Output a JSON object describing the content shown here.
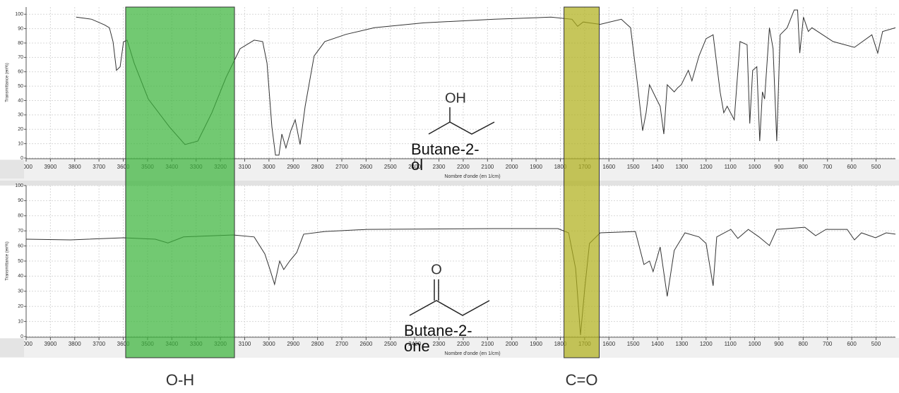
{
  "chart_data": [
    {
      "type": "line",
      "color": "#333333",
      "ylabel": "Transmittance (en%)",
      "xlabel": "Nombre d'onde (en 1/cm)",
      "xlim": [
        4000,
        420
      ],
      "ylim": [
        0,
        105
      ],
      "xticks": [
        4000,
        3900,
        3800,
        3700,
        3600,
        3500,
        3400,
        3300,
        3200,
        3100,
        3000,
        2900,
        2800,
        2700,
        2600,
        2500,
        2400,
        2300,
        2200,
        2100,
        2000,
        1900,
        1800,
        1700,
        1600,
        1500,
        1400,
        1300,
        1200,
        1100,
        1000,
        900,
        800,
        700,
        600,
        500
      ],
      "yticks": [
        0,
        10,
        20,
        30,
        40,
        50,
        60,
        70,
        80,
        90,
        100
      ],
      "grid": true,
      "annotations": [
        "OH",
        "Butane-2-ol"
      ],
      "x": [
        3794,
        3730,
        3677,
        3657,
        3642,
        3628,
        3613,
        3599,
        3584,
        3555,
        3497,
        3410,
        3346,
        3293,
        3235,
        3177,
        3119,
        3061,
        3026,
        3008,
        2988,
        2973,
        2959,
        2947,
        2930,
        2910,
        2892,
        2872,
        2851,
        2814,
        2770,
        2683,
        2566,
        2363,
        2072,
        1839,
        1752,
        1729,
        1706,
        1636,
        1549,
        1511,
        1482,
        1461,
        1447,
        1433,
        1404,
        1389,
        1374,
        1360,
        1331,
        1316,
        1302,
        1273,
        1258,
        1229,
        1200,
        1171,
        1142,
        1127,
        1113,
        1084,
        1060,
        1031,
        1020,
        1008,
        991,
        979,
        968,
        959,
        939,
        924,
        909,
        895,
        866,
        837,
        823,
        814,
        799,
        779,
        764,
        677,
        589,
        517,
        493,
        473,
        420
      ],
      "values": [
        98,
        96.5,
        92.6,
        90.6,
        80.8,
        61,
        63.5,
        80.8,
        82,
        66,
        41,
        21.7,
        9.4,
        11.8,
        31.5,
        56,
        76,
        82,
        81,
        66,
        21.7,
        2,
        2,
        16.7,
        7,
        19,
        26.6,
        9.4,
        36,
        71,
        81,
        86,
        90.6,
        94,
        96.5,
        98,
        96.5,
        91.6,
        94.6,
        93,
        96.5,
        90.6,
        51,
        19,
        31.5,
        51,
        41,
        36,
        16.7,
        51,
        46,
        49,
        51,
        61,
        53.7,
        71,
        83,
        85.7,
        46,
        31.5,
        36,
        26.6,
        81,
        78.8,
        24,
        61,
        63.5,
        11.8,
        46,
        41,
        90.6,
        76,
        11.8,
        85.7,
        90.6,
        103,
        103,
        73,
        98,
        88,
        90.6,
        81,
        77,
        85.7,
        73,
        88,
        90.6
      ]
    },
    {
      "type": "line",
      "color": "#333333",
      "ylabel": "Transmittance (en%)",
      "xlabel": "Nombre d'onde (en 1/cm)",
      "xlim": [
        4000,
        420
      ],
      "ylim": [
        0,
        100
      ],
      "xticks": [
        4000,
        3900,
        3800,
        3700,
        3600,
        3500,
        3400,
        3300,
        3200,
        3100,
        3000,
        2900,
        2800,
        2700,
        2600,
        2500,
        2400,
        2300,
        2200,
        2100,
        2000,
        1900,
        1800,
        1700,
        1600,
        1500,
        1400,
        1300,
        1200,
        1100,
        1000,
        900,
        800,
        700,
        600,
        500
      ],
      "yticks": [
        0,
        10,
        20,
        30,
        40,
        50,
        60,
        70,
        80,
        90,
        100
      ],
      "grid": true,
      "annotations": [
        "O",
        "Butane-2-one"
      ],
      "x": [
        4000,
        3817,
        3599,
        3468,
        3416,
        3352,
        3148,
        3061,
        3017,
        2997,
        2977,
        2956,
        2939,
        2915,
        2886,
        2857,
        2770,
        2595,
        2072,
        1810,
        1766,
        1737,
        1717,
        1700,
        1680,
        1636,
        1491,
        1456,
        1433,
        1418,
        1389,
        1360,
        1331,
        1287,
        1229,
        1200,
        1171,
        1156,
        1098,
        1069,
        1026,
        982,
        939,
        909,
        793,
        749,
        706,
        619,
        589,
        560,
        502,
        458,
        420
      ],
      "values": [
        64.5,
        64,
        65.4,
        64.5,
        62,
        66,
        67.3,
        66,
        54.7,
        45,
        34.6,
        50,
        44.4,
        50,
        55.6,
        67.8,
        69.6,
        71,
        71.5,
        71.5,
        68.7,
        45,
        1,
        31.3,
        61.7,
        68.7,
        69.6,
        47.7,
        50,
        43,
        59.3,
        26.6,
        57,
        68.7,
        66,
        61.7,
        33.6,
        66,
        71,
        65,
        71,
        66,
        60.3,
        71,
        72.4,
        66.8,
        71,
        71,
        64,
        68.7,
        65.4,
        68.7,
        67.8
      ]
    }
  ],
  "bands": [
    {
      "label": "O-H",
      "from": 3590,
      "to": 3142,
      "color": "#3cb43c"
    },
    {
      "label": "C=O",
      "from": 1785,
      "to": 1640,
      "color": "#b0b01c"
    }
  ]
}
